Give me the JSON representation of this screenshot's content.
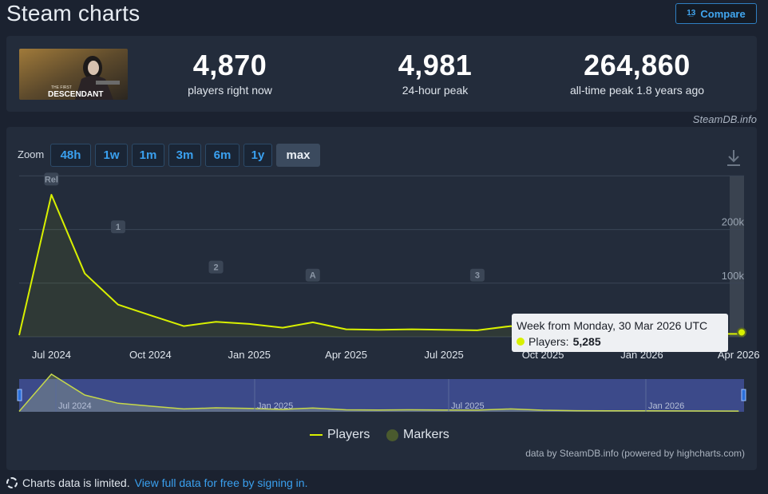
{
  "header": {
    "title": "Steam charts",
    "compare_label": "Compare"
  },
  "stats": [
    {
      "value": "4,870",
      "label": "players right now"
    },
    {
      "value": "4,981",
      "label": "24-hour peak"
    },
    {
      "value": "264,860",
      "label": "all-time peak 1.8 years ago"
    }
  ],
  "cover": {
    "alt": "The First Descendant",
    "small": "THE FIRST",
    "big": "DESCENDANT"
  },
  "source_label": "SteamDB.info",
  "zoom": {
    "label": "Zoom",
    "options": [
      "48h",
      "1w",
      "1m",
      "3m",
      "6m",
      "1y",
      "max"
    ],
    "selected": "max"
  },
  "chart_data": {
    "type": "line",
    "series": [
      {
        "name": "Players",
        "color": "#d8f000"
      }
    ],
    "x_ticks": [
      "Jul 2024",
      "Oct 2024",
      "Jan 2025",
      "Apr 2025",
      "Jul 2025",
      "Oct 2025",
      "Jan 2026",
      "Apr 2026"
    ],
    "y_ticks": [
      "100k",
      "200k"
    ],
    "ylim": [
      0,
      300000
    ],
    "x": [
      "2024-06-01",
      "2024-07-01",
      "2024-08-01",
      "2024-09-01",
      "2024-10-01",
      "2024-11-01",
      "2024-12-01",
      "2025-01-01",
      "2025-02-01",
      "2025-03-01",
      "2025-04-01",
      "2025-05-01",
      "2025-06-01",
      "2025-07-01",
      "2025-08-01",
      "2025-09-01",
      "2025-10-01",
      "2025-11-01",
      "2025-12-01",
      "2026-01-01",
      "2026-02-01",
      "2026-03-01",
      "2026-04-01"
    ],
    "y": [
      3000,
      264860,
      118000,
      60000,
      40000,
      20000,
      28000,
      24000,
      17000,
      27000,
      14000,
      13000,
      14000,
      13000,
      12000,
      20000,
      11000,
      8000,
      7000,
      6500,
      6000,
      5500,
      5285
    ],
    "markers": [
      "Rel",
      "1",
      "2",
      "A",
      "3"
    ],
    "tooltip": {
      "title": "Week from Monday, 30 Mar 2026 UTC",
      "series": "Players",
      "value": "5,285"
    },
    "navigator_ticks": [
      "Jul 2024",
      "Jan 2025",
      "Jul 2025",
      "Jan 2026"
    ],
    "legend": [
      {
        "label": "Players",
        "color": "#d8f000"
      },
      {
        "label": "Markers",
        "color": "#4a5a2e"
      }
    ]
  },
  "credit": "data by SteamDB.info (powered by highcharts.com)",
  "footer": {
    "text": "Charts data is limited.",
    "link": "View full data for free by signing in."
  }
}
